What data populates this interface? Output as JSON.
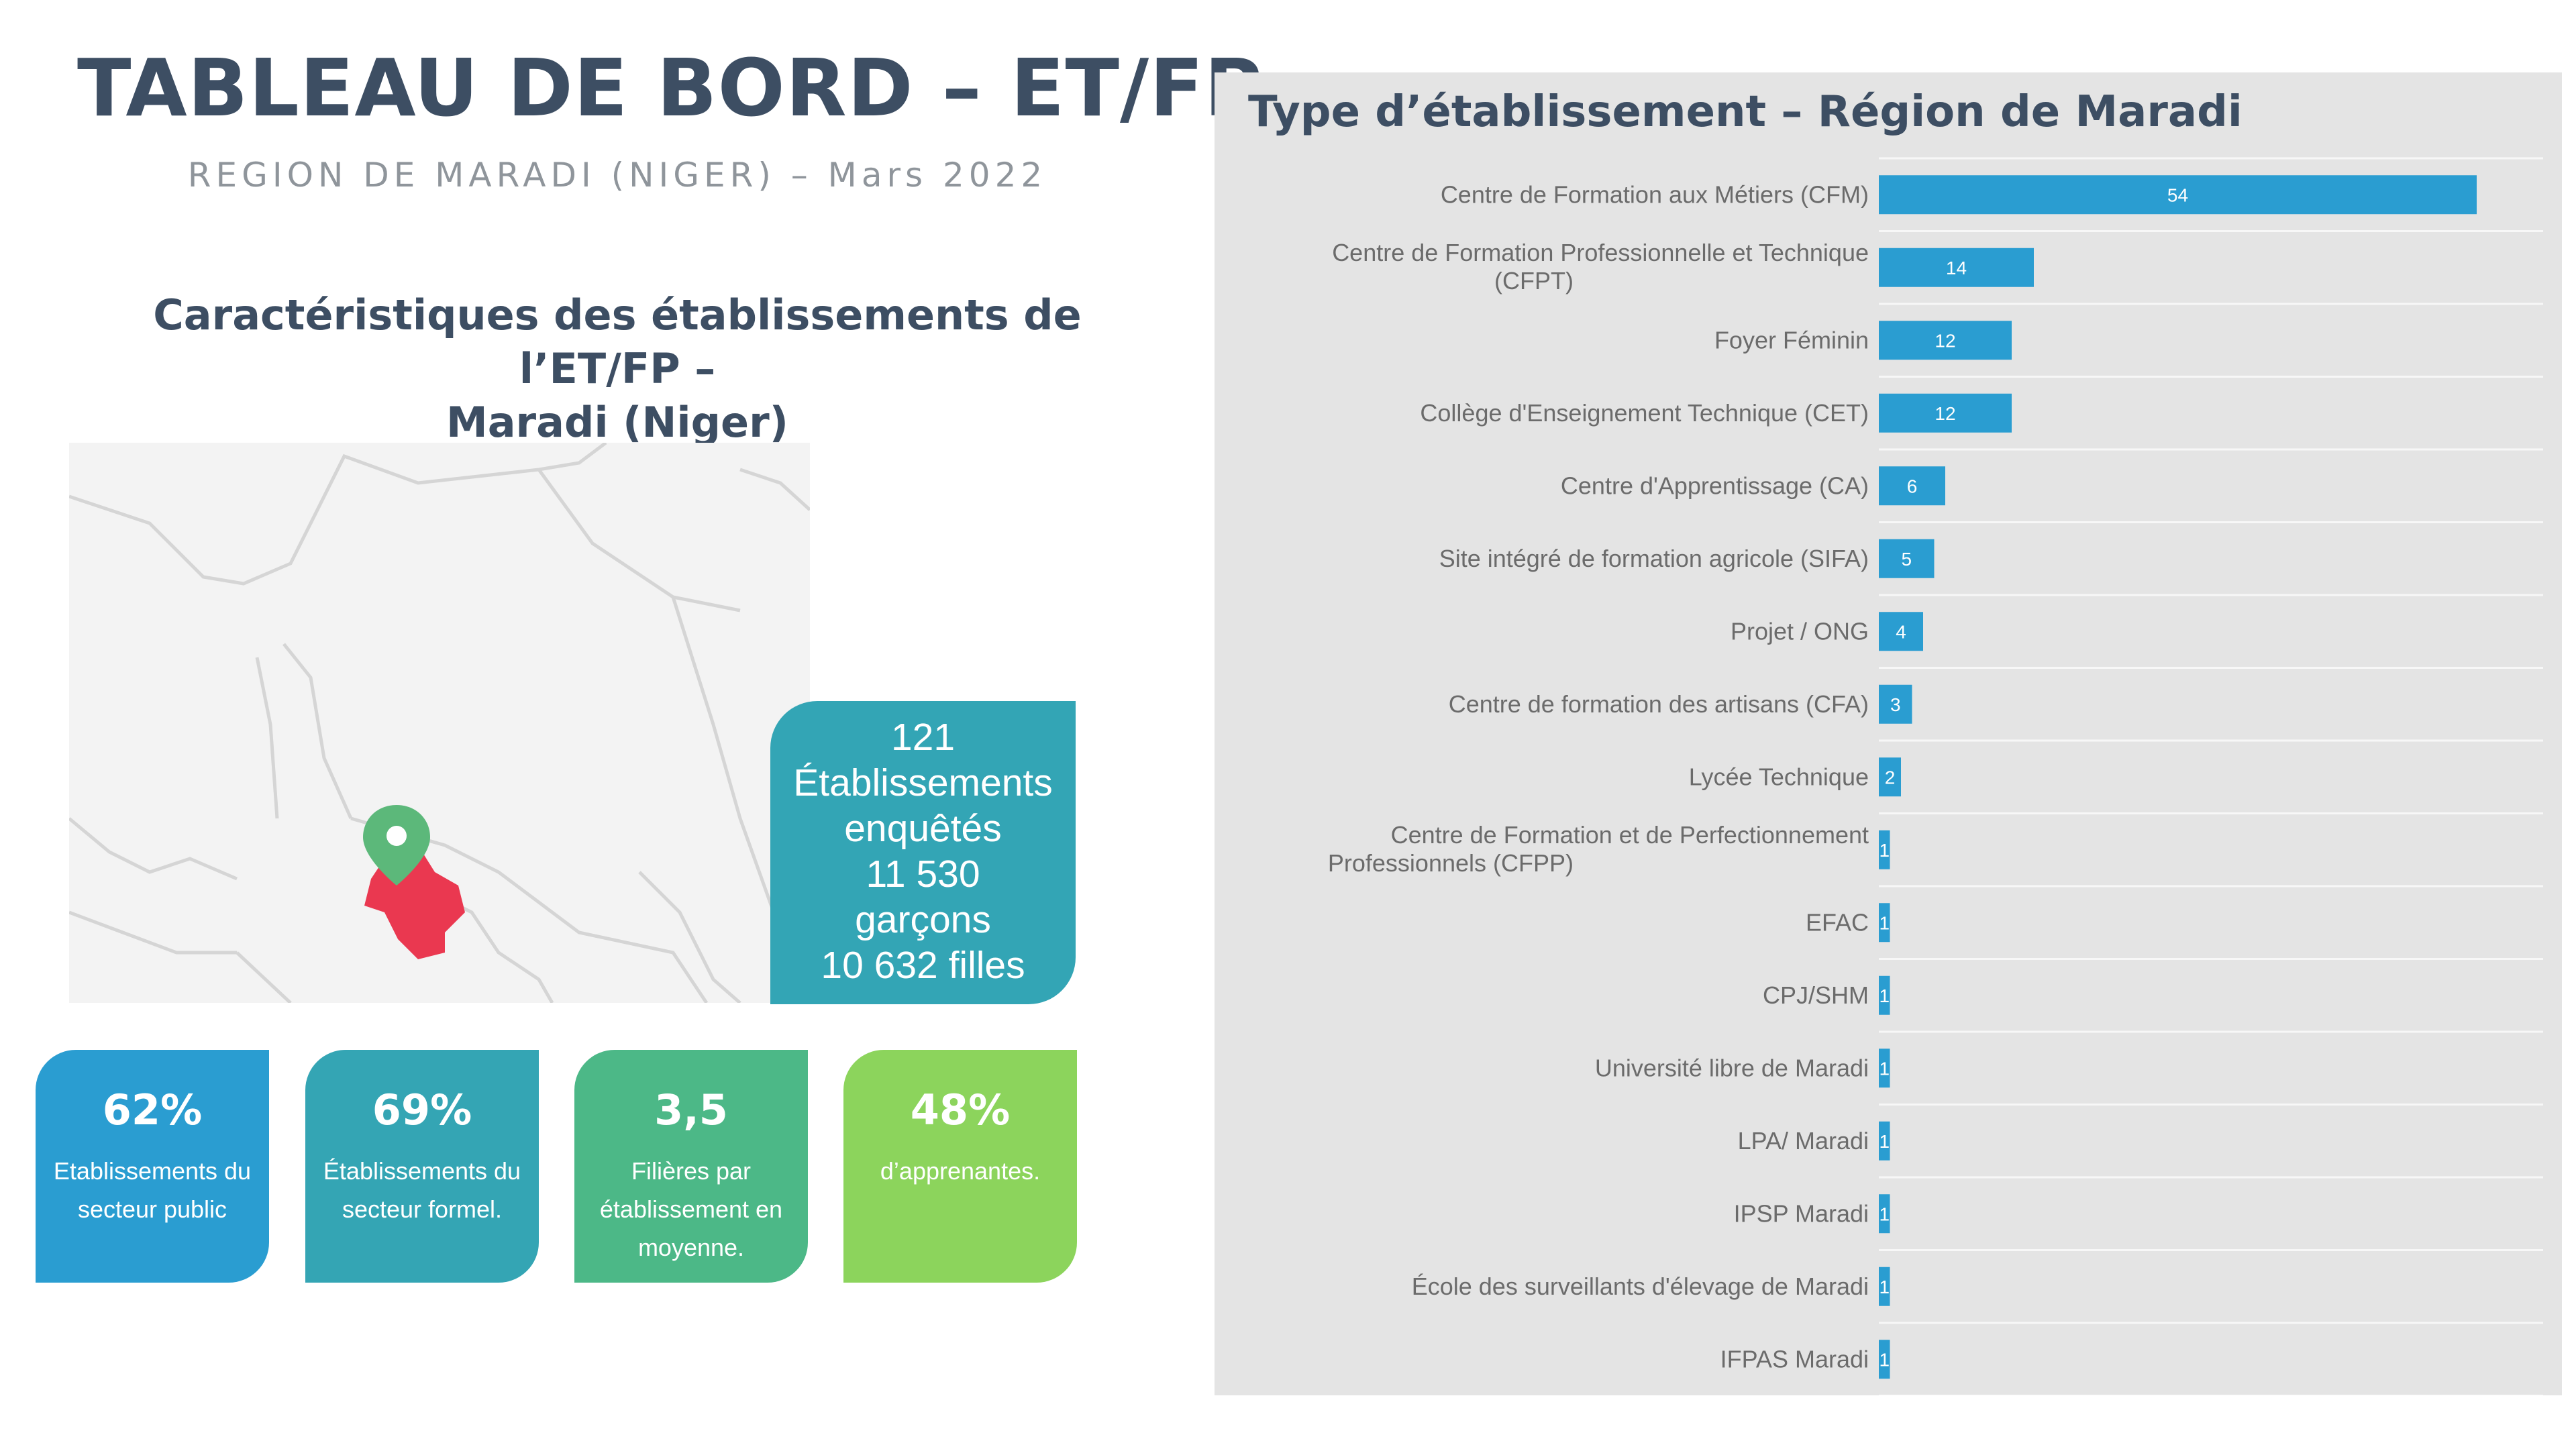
{
  "header": {
    "title": "TABLEAU DE BORD – ET/FP",
    "subtitle": "REGION DE MARADI (NIGER) – Mars 2022"
  },
  "left": {
    "section_heading_line1": "Caractéristiques des établissements de l’ET/FP –",
    "section_heading_line2": "Maradi (Niger)",
    "map": {
      "highlight_color": "#ea3850",
      "pin_color": "#5cb87a",
      "pin_icon": "map-pin-icon"
    },
    "stats_card": {
      "count": "121",
      "count_label_1": "Établissements",
      "count_label_2": "enquêtés",
      "boys_count": "11 530",
      "boys_label": "garçons",
      "girls": "10 632 filles",
      "color": "#33a5b5"
    },
    "kpis": [
      {
        "value": "62%",
        "label": "Etablissements du secteur public",
        "color": "#2a9dd1"
      },
      {
        "value": "69%",
        "label": "Établissements du secteur formel.",
        "color": "#34a5b4"
      },
      {
        "value": "3,5",
        "label": "Filières par établissement en moyenne.",
        "color": "#4cb887"
      },
      {
        "value": "48%",
        "label": "d’apprenantes.",
        "color": "#8cd45c"
      }
    ]
  },
  "chart_data": {
    "type": "bar",
    "orientation": "horizontal",
    "title": "Type d’établissement – Région de Maradi",
    "xlabel": "",
    "ylabel": "",
    "bar_color": "#2a9dd1",
    "xlim": [
      0,
      60
    ],
    "grid": false,
    "categories": [
      "Centre de Formation aux Métiers (CFM)",
      "Centre de Formation Professionnelle et Technique (CFPT)",
      "Foyer Féminin",
      "Collège d'Enseignement Technique (CET)",
      "Centre d'Apprentissage (CA)",
      "Site intégré de formation agricole (SIFA)",
      "Projet / ONG",
      "Centre de formation des artisans (CFA)",
      "Lycée Technique",
      "Centre de Formation et de Perfectionnement Professionnels (CFPP)",
      "EFAC",
      "CPJ/SHM",
      "Université libre de Maradi",
      "LPA/ Maradi",
      "IPSP Maradi",
      "École des surveillants d'élevage de Maradi",
      "IFPAS Maradi"
    ],
    "values": [
      54,
      14,
      12,
      12,
      6,
      5,
      4,
      3,
      2,
      1,
      1,
      1,
      1,
      1,
      1,
      1,
      1
    ]
  }
}
